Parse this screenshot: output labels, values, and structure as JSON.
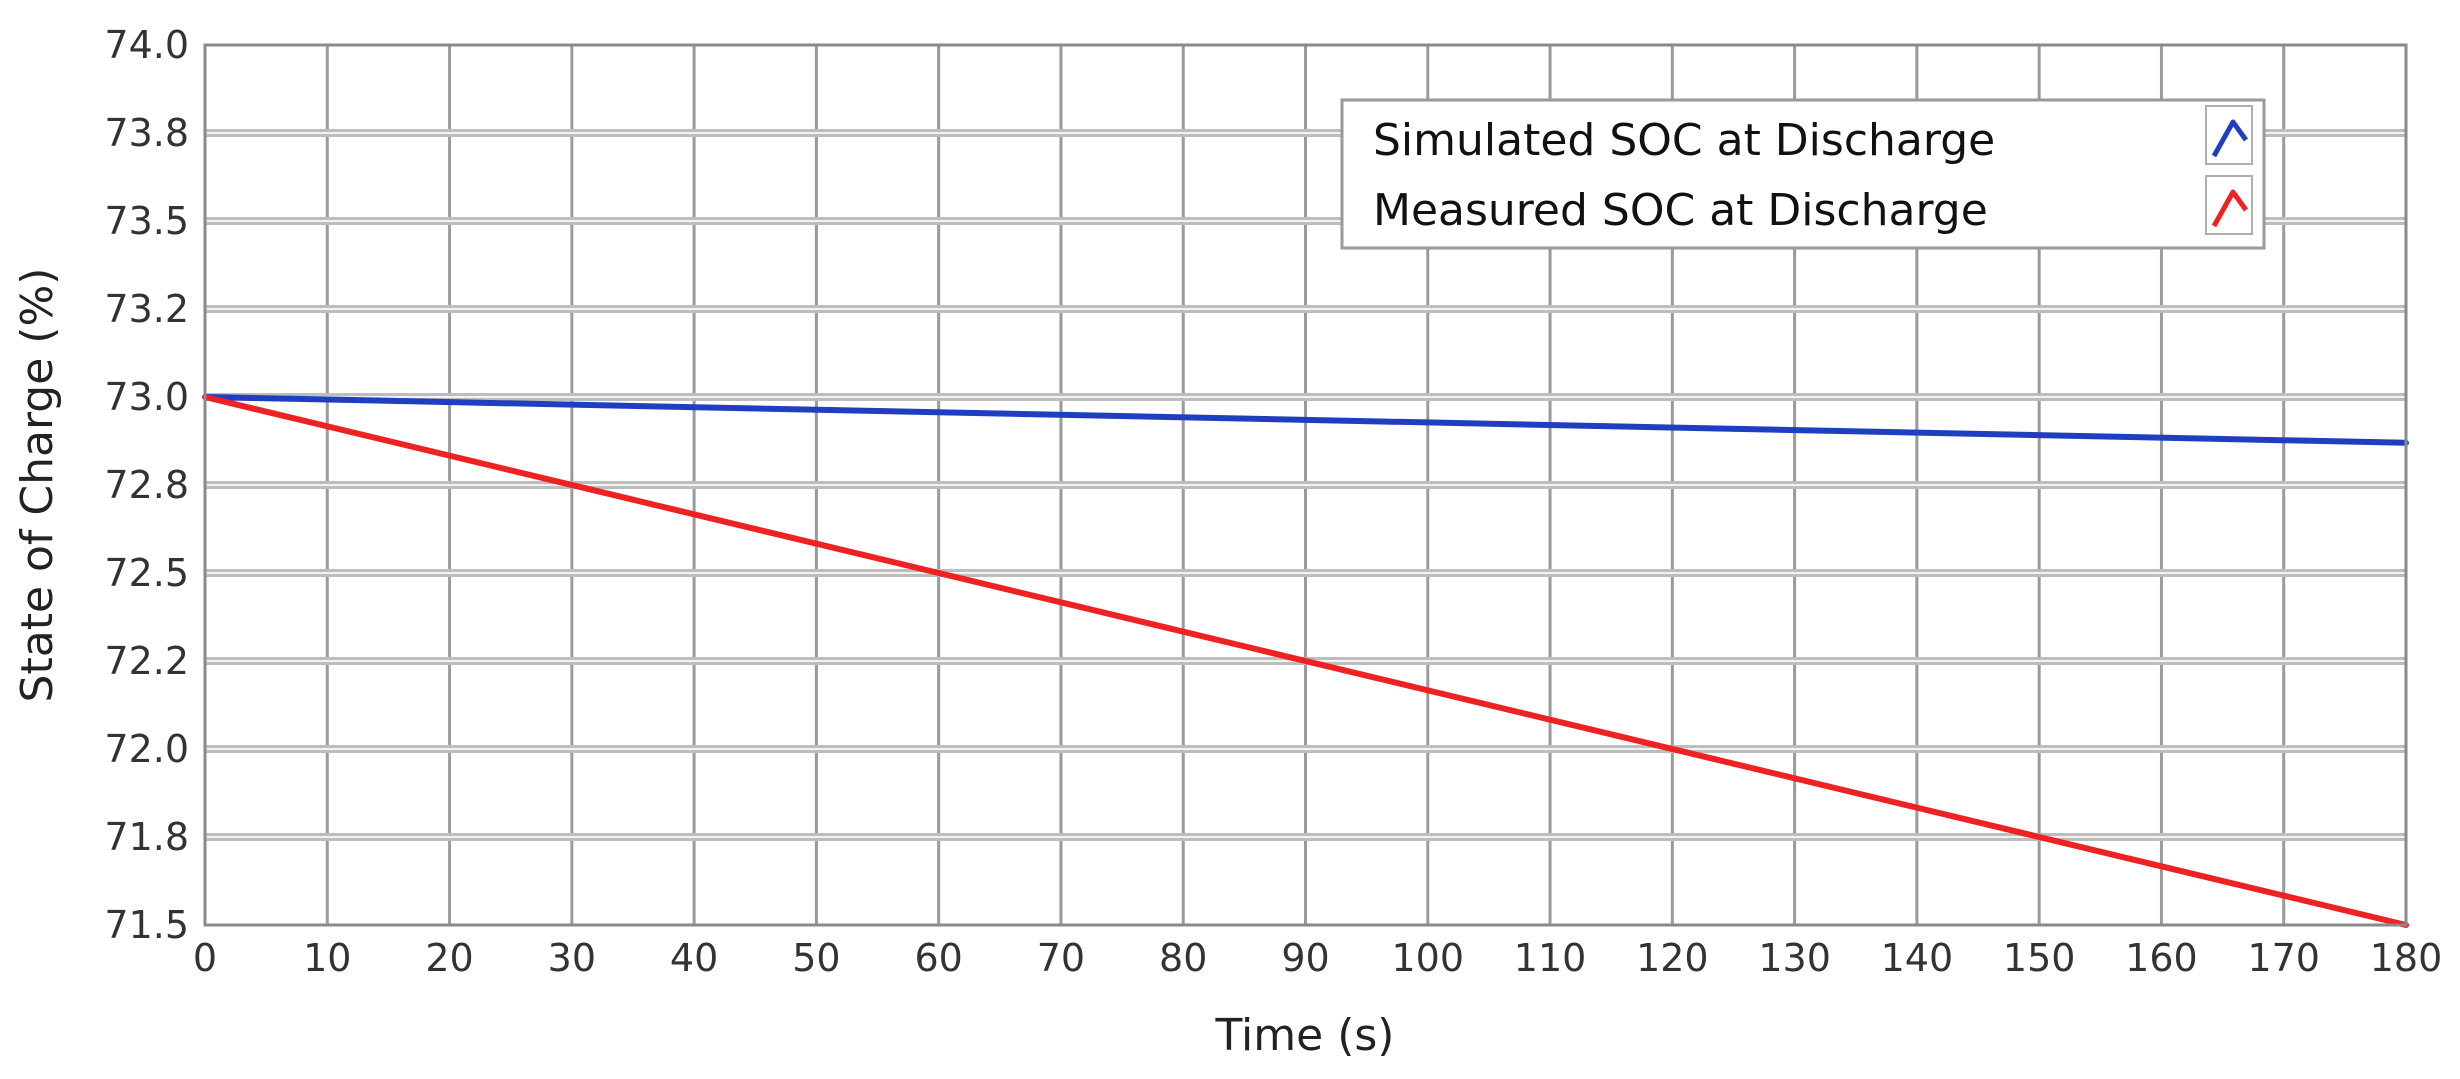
{
  "chart_data": {
    "type": "line",
    "title": "",
    "xlabel": "Time (s)",
    "ylabel": "State of Charge (%)",
    "xlim": [
      0,
      180
    ],
    "ylim": [
      71.5,
      74.0
    ],
    "grid": true,
    "legend_position": "top-right",
    "x_ticks": [
      0,
      10,
      20,
      30,
      40,
      50,
      60,
      70,
      80,
      90,
      100,
      110,
      120,
      130,
      140,
      150,
      160,
      170,
      180
    ],
    "y_ticks": [
      71.5,
      71.75,
      72.0,
      72.25,
      72.5,
      72.75,
      73.0,
      73.25,
      73.5,
      73.75,
      74.0
    ],
    "y_tick_labels": [
      "71.5",
      "71.8",
      "72.0",
      "72.2",
      "72.5",
      "72.8",
      "73.0",
      "73.2",
      "73.5",
      "73.8",
      "74.0"
    ],
    "series": [
      {
        "name": "Simulated SOC at Discharge",
        "color": "#1f3fc0",
        "x": [
          0,
          180
        ],
        "y": [
          73.0,
          72.87
        ]
      },
      {
        "name": "Measured SOC at Discharge",
        "color": "#ee2222",
        "x": [
          0,
          180
        ],
        "y": [
          73.0,
          71.5
        ]
      }
    ]
  }
}
